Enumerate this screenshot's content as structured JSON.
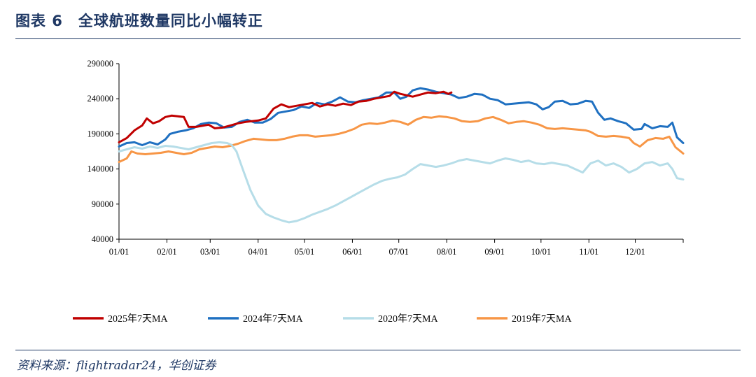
{
  "header": {
    "title": "图表 6　全球航班数量同比小幅转正"
  },
  "footer": {
    "source": "资料来源：flightradar24，华创证券"
  },
  "chart_data": {
    "type": "line",
    "title": "全球航班数量同比小幅转正",
    "xlabel": "",
    "ylabel": "",
    "ylim": [
      40000,
      290000
    ],
    "yticks": [
      40000,
      90000,
      140000,
      190000,
      240000,
      290000
    ],
    "ytick_labels": [
      "40000",
      "90000",
      "140000",
      "190000",
      "240000",
      "290000"
    ],
    "x_domain": [
      0,
      365
    ],
    "xtick_labels": [
      "01/01",
      "02/01",
      "03/01",
      "04/01",
      "05/01",
      "06/01",
      "07/01",
      "08/01",
      "09/01",
      "10/01",
      "11/01",
      "12/01"
    ],
    "xtick_days": [
      0,
      31,
      59,
      90,
      120,
      151,
      181,
      212,
      243,
      273,
      304,
      334
    ],
    "legend_position": "bottom",
    "series": [
      {
        "name": "2025年7天MA",
        "color": "#c00000",
        "points": [
          [
            0,
            178000
          ],
          [
            5,
            184000
          ],
          [
            10,
            195000
          ],
          [
            15,
            202000
          ],
          [
            18,
            212000
          ],
          [
            22,
            205000
          ],
          [
            26,
            208000
          ],
          [
            30,
            214000
          ],
          [
            34,
            216000
          ],
          [
            38,
            215000
          ],
          [
            42,
            214000
          ],
          [
            45,
            200000
          ],
          [
            50,
            200000
          ],
          [
            55,
            202000
          ],
          [
            58,
            203000
          ],
          [
            62,
            198000
          ],
          [
            67,
            199000
          ],
          [
            72,
            202000
          ],
          [
            77,
            205000
          ],
          [
            82,
            207000
          ],
          [
            86,
            208000
          ],
          [
            90,
            209000
          ],
          [
            95,
            212000
          ],
          [
            100,
            226000
          ],
          [
            105,
            232000
          ],
          [
            110,
            228000
          ],
          [
            115,
            230000
          ],
          [
            120,
            232000
          ],
          [
            125,
            234000
          ],
          [
            130,
            229000
          ],
          [
            135,
            232000
          ],
          [
            140,
            230000
          ],
          [
            145,
            233000
          ],
          [
            150,
            231000
          ],
          [
            155,
            236000
          ],
          [
            160,
            237000
          ],
          [
            165,
            240000
          ],
          [
            170,
            242000
          ],
          [
            175,
            244000
          ],
          [
            178,
            250000
          ],
          [
            182,
            247000
          ],
          [
            186,
            245000
          ],
          [
            190,
            243000
          ],
          [
            195,
            246000
          ],
          [
            200,
            249000
          ],
          [
            205,
            248000
          ],
          [
            210,
            250000
          ],
          [
            213,
            247000
          ],
          [
            215,
            249000
          ]
        ]
      },
      {
        "name": "2024年7天MA",
        "color": "#1f70c1",
        "points": [
          [
            0,
            172000
          ],
          [
            5,
            177000
          ],
          [
            10,
            178000
          ],
          [
            15,
            174000
          ],
          [
            20,
            178000
          ],
          [
            25,
            175000
          ],
          [
            30,
            182000
          ],
          [
            33,
            190000
          ],
          [
            38,
            193000
          ],
          [
            43,
            195000
          ],
          [
            48,
            198000
          ],
          [
            53,
            204000
          ],
          [
            58,
            206000
          ],
          [
            63,
            205000
          ],
          [
            68,
            199000
          ],
          [
            73,
            200000
          ],
          [
            78,
            207000
          ],
          [
            83,
            210000
          ],
          [
            88,
            206000
          ],
          [
            93,
            206000
          ],
          [
            98,
            211000
          ],
          [
            103,
            220000
          ],
          [
            108,
            222000
          ],
          [
            113,
            224000
          ],
          [
            118,
            229000
          ],
          [
            123,
            227000
          ],
          [
            128,
            234000
          ],
          [
            133,
            232000
          ],
          [
            138,
            236000
          ],
          [
            143,
            242000
          ],
          [
            148,
            236000
          ],
          [
            153,
            235000
          ],
          [
            158,
            238000
          ],
          [
            163,
            240000
          ],
          [
            168,
            242000
          ],
          [
            173,
            249000
          ],
          [
            178,
            249000
          ],
          [
            182,
            240000
          ],
          [
            186,
            243000
          ],
          [
            190,
            252000
          ],
          [
            195,
            255000
          ],
          [
            200,
            253000
          ],
          [
            205,
            250000
          ],
          [
            210,
            248000
          ],
          [
            215,
            246000
          ],
          [
            220,
            241000
          ],
          [
            225,
            243000
          ],
          [
            230,
            247000
          ],
          [
            235,
            246000
          ],
          [
            240,
            240000
          ],
          [
            245,
            238000
          ],
          [
            250,
            232000
          ],
          [
            255,
            233000
          ],
          [
            260,
            234000
          ],
          [
            265,
            235000
          ],
          [
            270,
            232000
          ],
          [
            274,
            225000
          ],
          [
            278,
            228000
          ],
          [
            282,
            236000
          ],
          [
            287,
            237000
          ],
          [
            292,
            232000
          ],
          [
            297,
            233000
          ],
          [
            302,
            237000
          ],
          [
            306,
            236000
          ],
          [
            310,
            220000
          ],
          [
            314,
            210000
          ],
          [
            318,
            212000
          ],
          [
            323,
            208000
          ],
          [
            328,
            205000
          ],
          [
            333,
            196000
          ],
          [
            338,
            197000
          ],
          [
            340,
            204000
          ],
          [
            345,
            198000
          ],
          [
            350,
            201000
          ],
          [
            355,
            200000
          ],
          [
            358,
            206000
          ],
          [
            361,
            185000
          ],
          [
            365,
            177000
          ]
        ]
      },
      {
        "name": "2020年7天MA",
        "color": "#b6dde8",
        "points": [
          [
            0,
            165000
          ],
          [
            5,
            168000
          ],
          [
            10,
            171000
          ],
          [
            15,
            169000
          ],
          [
            20,
            172000
          ],
          [
            25,
            170000
          ],
          [
            30,
            173000
          ],
          [
            35,
            172000
          ],
          [
            40,
            170000
          ],
          [
            45,
            168000
          ],
          [
            50,
            171000
          ],
          [
            55,
            174000
          ],
          [
            60,
            177000
          ],
          [
            65,
            178000
          ],
          [
            70,
            177000
          ],
          [
            73,
            174000
          ],
          [
            76,
            165000
          ],
          [
            80,
            140000
          ],
          [
            85,
            110000
          ],
          [
            90,
            88000
          ],
          [
            95,
            76000
          ],
          [
            100,
            71000
          ],
          [
            105,
            67000
          ],
          [
            110,
            64000
          ],
          [
            115,
            66000
          ],
          [
            120,
            70000
          ],
          [
            125,
            75000
          ],
          [
            130,
            79000
          ],
          [
            135,
            83000
          ],
          [
            140,
            88000
          ],
          [
            145,
            94000
          ],
          [
            150,
            100000
          ],
          [
            155,
            106000
          ],
          [
            160,
            112000
          ],
          [
            165,
            118000
          ],
          [
            170,
            123000
          ],
          [
            175,
            126000
          ],
          [
            180,
            128000
          ],
          [
            185,
            132000
          ],
          [
            190,
            140000
          ],
          [
            195,
            147000
          ],
          [
            200,
            145000
          ],
          [
            205,
            143000
          ],
          [
            210,
            145000
          ],
          [
            215,
            148000
          ],
          [
            220,
            152000
          ],
          [
            225,
            154000
          ],
          [
            230,
            152000
          ],
          [
            235,
            150000
          ],
          [
            240,
            148000
          ],
          [
            245,
            152000
          ],
          [
            250,
            155000
          ],
          [
            255,
            153000
          ],
          [
            260,
            150000
          ],
          [
            265,
            152000
          ],
          [
            270,
            148000
          ],
          [
            275,
            147000
          ],
          [
            280,
            149000
          ],
          [
            285,
            147000
          ],
          [
            290,
            145000
          ],
          [
            295,
            140000
          ],
          [
            300,
            135000
          ],
          [
            305,
            148000
          ],
          [
            310,
            152000
          ],
          [
            315,
            145000
          ],
          [
            320,
            148000
          ],
          [
            325,
            143000
          ],
          [
            330,
            135000
          ],
          [
            335,
            140000
          ],
          [
            340,
            148000
          ],
          [
            345,
            150000
          ],
          [
            350,
            145000
          ],
          [
            355,
            148000
          ],
          [
            358,
            140000
          ],
          [
            361,
            127000
          ],
          [
            365,
            125000
          ]
        ]
      },
      {
        "name": "2019年7天MA",
        "color": "#f79646",
        "points": [
          [
            0,
            150000
          ],
          [
            5,
            155000
          ],
          [
            8,
            165000
          ],
          [
            12,
            162000
          ],
          [
            17,
            161000
          ],
          [
            22,
            162000
          ],
          [
            27,
            163000
          ],
          [
            32,
            165000
          ],
          [
            37,
            163000
          ],
          [
            42,
            161000
          ],
          [
            47,
            163000
          ],
          [
            52,
            168000
          ],
          [
            57,
            170000
          ],
          [
            62,
            172000
          ],
          [
            67,
            171000
          ],
          [
            72,
            173000
          ],
          [
            77,
            176000
          ],
          [
            82,
            180000
          ],
          [
            87,
            183000
          ],
          [
            92,
            182000
          ],
          [
            97,
            181000
          ],
          [
            102,
            181000
          ],
          [
            107,
            183000
          ],
          [
            112,
            186000
          ],
          [
            117,
            188000
          ],
          [
            122,
            188000
          ],
          [
            127,
            186000
          ],
          [
            132,
            187000
          ],
          [
            137,
            188000
          ],
          [
            142,
            190000
          ],
          [
            147,
            193000
          ],
          [
            152,
            197000
          ],
          [
            157,
            203000
          ],
          [
            162,
            205000
          ],
          [
            167,
            204000
          ],
          [
            172,
            206000
          ],
          [
            177,
            209000
          ],
          [
            182,
            207000
          ],
          [
            187,
            203000
          ],
          [
            192,
            210000
          ],
          [
            197,
            214000
          ],
          [
            202,
            213000
          ],
          [
            207,
            215000
          ],
          [
            212,
            214000
          ],
          [
            217,
            212000
          ],
          [
            222,
            208000
          ],
          [
            227,
            207000
          ],
          [
            232,
            208000
          ],
          [
            237,
            212000
          ],
          [
            242,
            214000
          ],
          [
            247,
            210000
          ],
          [
            252,
            205000
          ],
          [
            257,
            207000
          ],
          [
            262,
            208000
          ],
          [
            267,
            206000
          ],
          [
            272,
            203000
          ],
          [
            277,
            198000
          ],
          [
            282,
            197000
          ],
          [
            287,
            198000
          ],
          [
            292,
            197000
          ],
          [
            297,
            196000
          ],
          [
            302,
            195000
          ],
          [
            305,
            193000
          ],
          [
            310,
            187000
          ],
          [
            315,
            186000
          ],
          [
            320,
            187000
          ],
          [
            325,
            186000
          ],
          [
            330,
            184000
          ],
          [
            333,
            177000
          ],
          [
            337,
            172000
          ],
          [
            342,
            181000
          ],
          [
            347,
            184000
          ],
          [
            352,
            183000
          ],
          [
            356,
            186000
          ],
          [
            360,
            171000
          ],
          [
            365,
            162000
          ]
        ]
      }
    ]
  }
}
